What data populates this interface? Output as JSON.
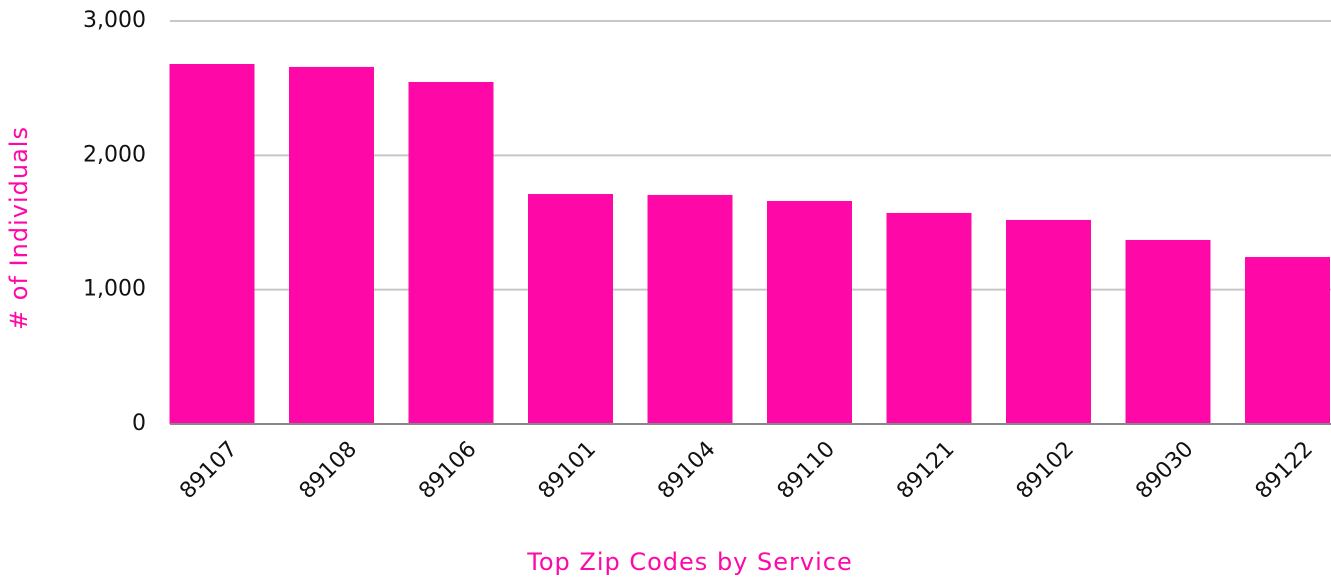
{
  "chart_data": {
    "type": "bar",
    "x_label": "Top Zip Codes by Service",
    "y_label": "# of Individuals",
    "categories": [
      "89107",
      "89108",
      "89106",
      "89101",
      "89104",
      "89110",
      "89121",
      "89102",
      "89030",
      "89122"
    ],
    "values": [
      2680,
      2658,
      2546,
      1712,
      1705,
      1660,
      1571,
      1519,
      1370,
      1243
    ],
    "color": "#ff08a8",
    "ylim": [
      0,
      3000
    ],
    "yticks": [
      0,
      {
        "value": 1000,
        "label": "1,000"
      },
      {
        "value": 2000,
        "label": "2,000"
      },
      {
        "value": 3000,
        "label": "3,000"
      }
    ],
    "grid": true
  }
}
